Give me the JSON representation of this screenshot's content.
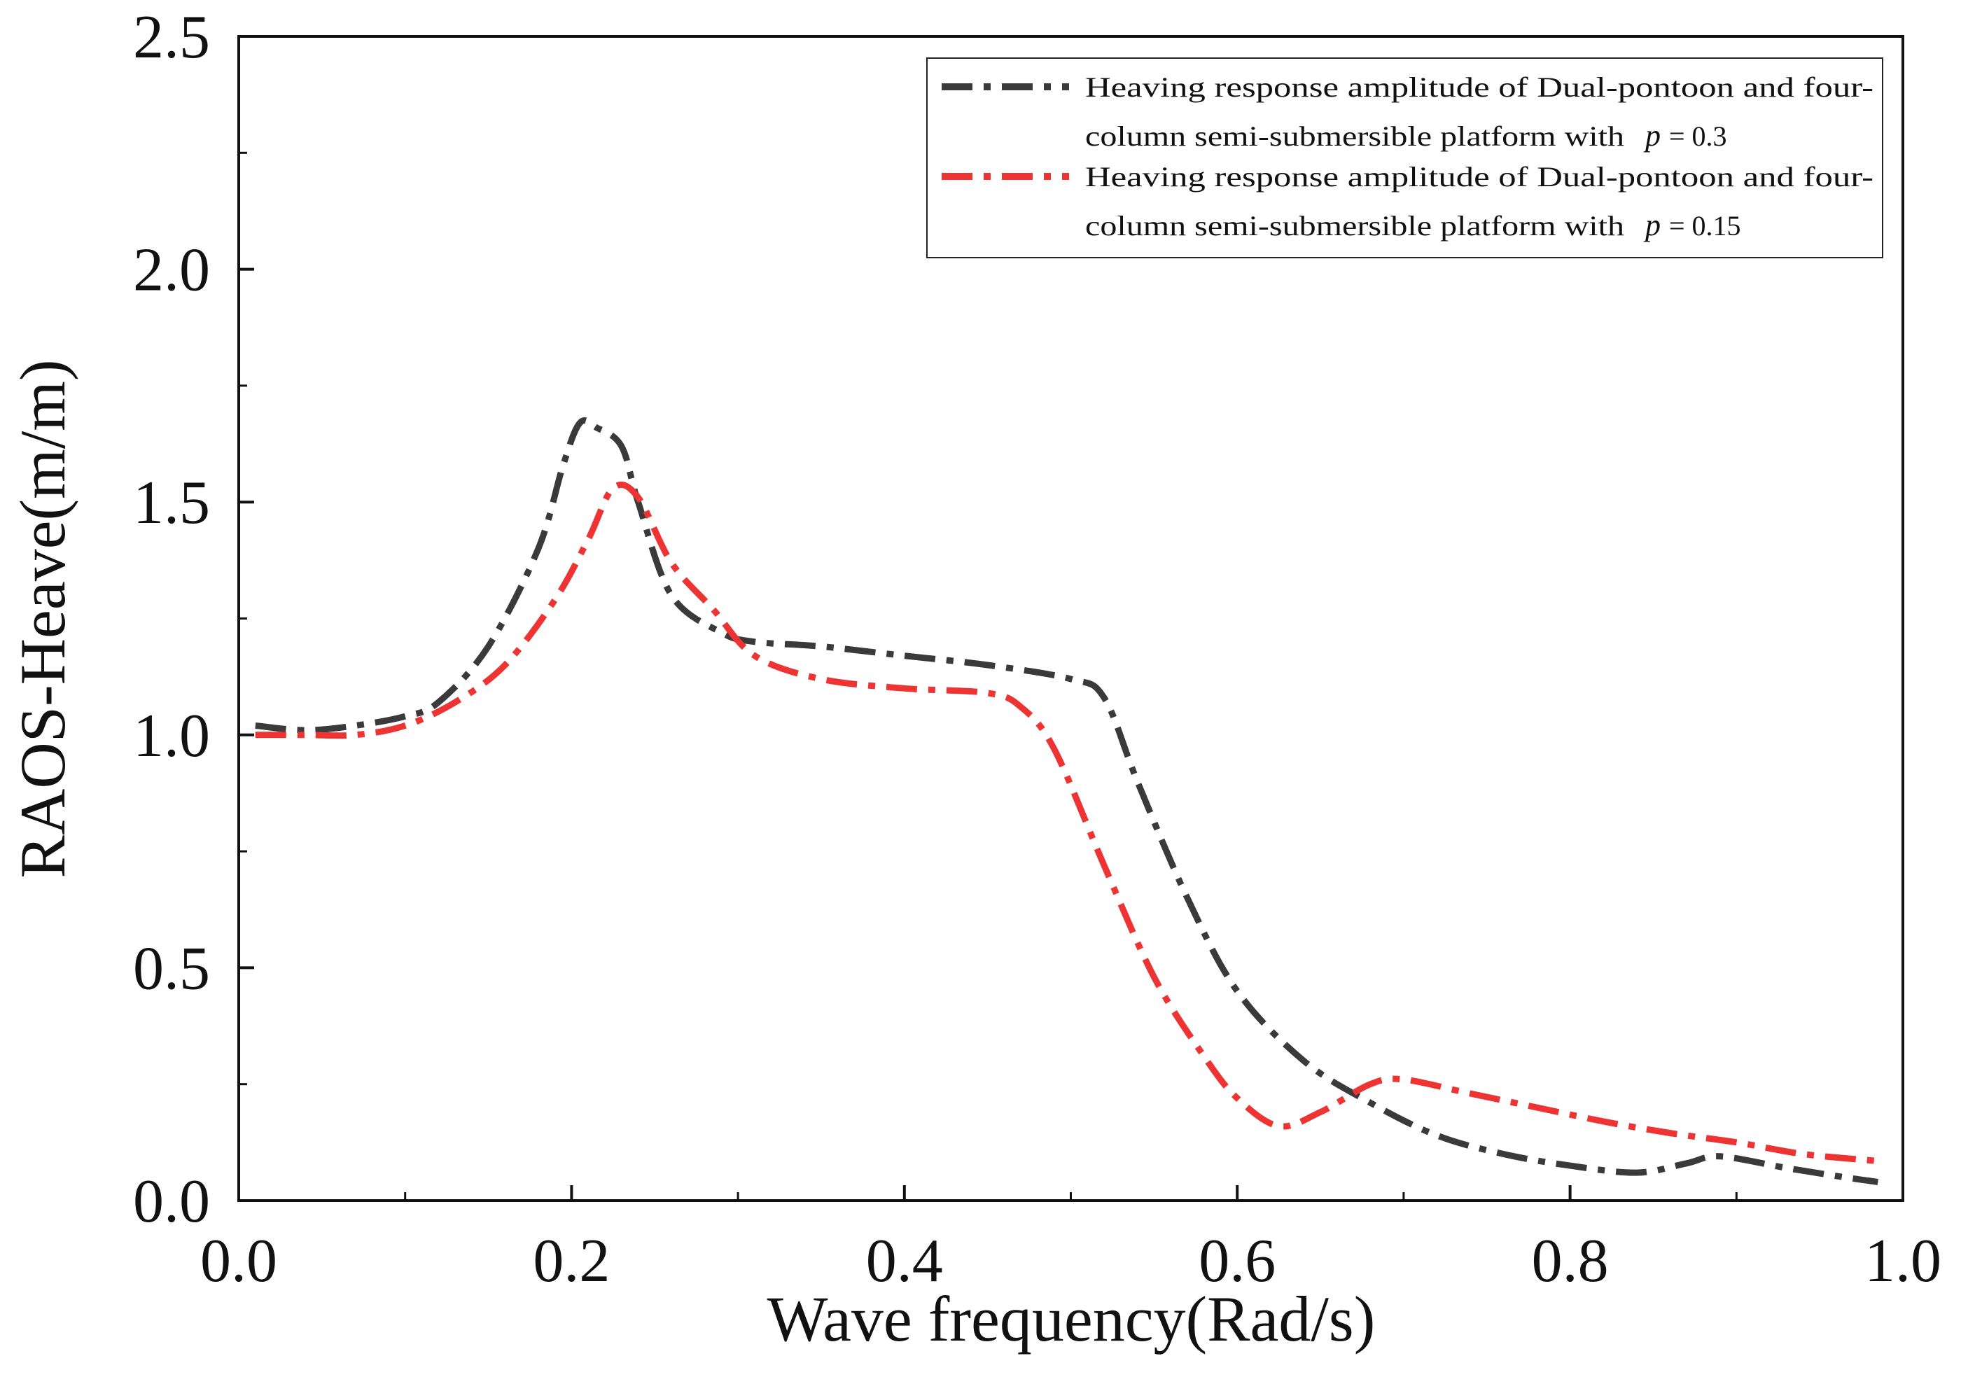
{
  "chart_data": {
    "type": "line",
    "title": "",
    "xlabel": "Wave frequency(Rad/s)",
    "ylabel": "RAOS-Heave(m/m)",
    "xlim": [
      0.0,
      1.0
    ],
    "ylim": [
      0.0,
      2.5
    ],
    "xticks": [
      "0.0",
      "0.2",
      "0.4",
      "0.6",
      "0.8",
      "1.0"
    ],
    "yticks": [
      "0.0",
      "0.5",
      "1.0",
      "1.5",
      "2.0",
      "2.5"
    ],
    "grid": false,
    "legend_position": "top-right",
    "series": [
      {
        "name": "Heaving response amplitude of Dual-pontoon and four-column semi-submersible platform with p = 0.3",
        "legend_line1": "Heaving response amplitude of Dual-pontoon and four-",
        "legend_line2_prefix": "column semi-submersible platform with",
        "legend_symbol": "p",
        "legend_value": "= 0.3",
        "color": "#3a3a3a",
        "x": [
          0.01,
          0.04,
          0.07,
          0.1,
          0.12,
          0.15,
          0.18,
          0.195,
          0.205,
          0.215,
          0.23,
          0.24,
          0.26,
          0.29,
          0.31,
          0.35,
          0.4,
          0.45,
          0.5,
          0.52,
          0.54,
          0.57,
          0.6,
          0.64,
          0.68,
          0.72,
          0.76,
          0.8,
          0.84,
          0.87,
          0.89,
          0.93,
          0.965,
          0.985
        ],
        "y": [
          1.02,
          1.01,
          1.02,
          1.04,
          1.07,
          1.19,
          1.4,
          1.58,
          1.67,
          1.66,
          1.62,
          1.5,
          1.3,
          1.22,
          1.2,
          1.19,
          1.17,
          1.15,
          1.12,
          1.08,
          0.9,
          0.65,
          0.45,
          0.3,
          0.21,
          0.14,
          0.1,
          0.075,
          0.06,
          0.08,
          0.095,
          0.07,
          0.05,
          0.04
        ]
      },
      {
        "name": "Heaving response amplitude of Dual-pontoon and four-column semi-submersible platform with p = 0.15",
        "legend_line1": "Heaving response amplitude of Dual-pontoon and four-",
        "legend_line2_prefix": "column semi-submersible platform with",
        "legend_symbol": "p",
        "legend_value": "= 0.15",
        "color": "#ee3333",
        "x": [
          0.01,
          0.04,
          0.07,
          0.1,
          0.13,
          0.16,
          0.19,
          0.21,
          0.225,
          0.24,
          0.26,
          0.285,
          0.31,
          0.35,
          0.4,
          0.45,
          0.47,
          0.49,
          0.52,
          0.55,
          0.58,
          0.6,
          0.625,
          0.65,
          0.68,
          0.7,
          0.74,
          0.78,
          0.82,
          0.86,
          0.9,
          0.94,
          0.985
        ],
        "y": [
          1.0,
          1.0,
          1.0,
          1.02,
          1.07,
          1.15,
          1.29,
          1.42,
          1.53,
          1.51,
          1.37,
          1.27,
          1.17,
          1.12,
          1.1,
          1.09,
          1.06,
          0.97,
          0.72,
          0.48,
          0.31,
          0.22,
          0.16,
          0.19,
          0.25,
          0.26,
          0.23,
          0.2,
          0.17,
          0.145,
          0.125,
          0.1,
          0.085
        ]
      }
    ]
  }
}
